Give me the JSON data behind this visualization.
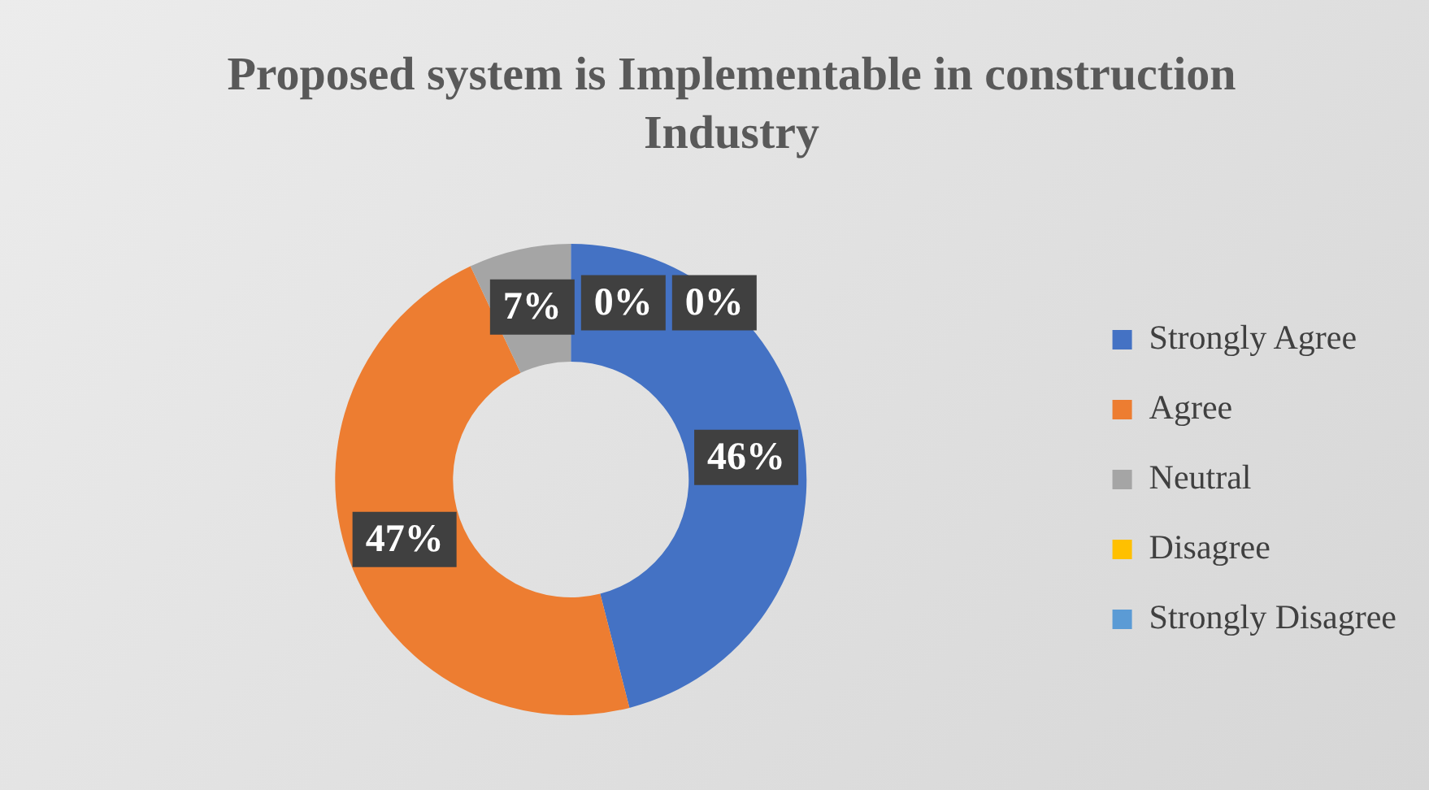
{
  "chart_data": {
    "type": "donut",
    "title": "Proposed system is Implementable in construction Industry",
    "categories": [
      "Strongly Agree",
      "Agree",
      "Neutral",
      "Disagree",
      "Strongly Disagree"
    ],
    "values": [
      46,
      47,
      7,
      0,
      0
    ],
    "colors": [
      "#4472c4",
      "#ed7d31",
      "#a5a5a5",
      "#ffc000",
      "#5b9bd5"
    ],
    "value_labels": [
      "46%",
      "47%",
      "7%",
      "0%",
      "0%"
    ],
    "legend": "right"
  }
}
